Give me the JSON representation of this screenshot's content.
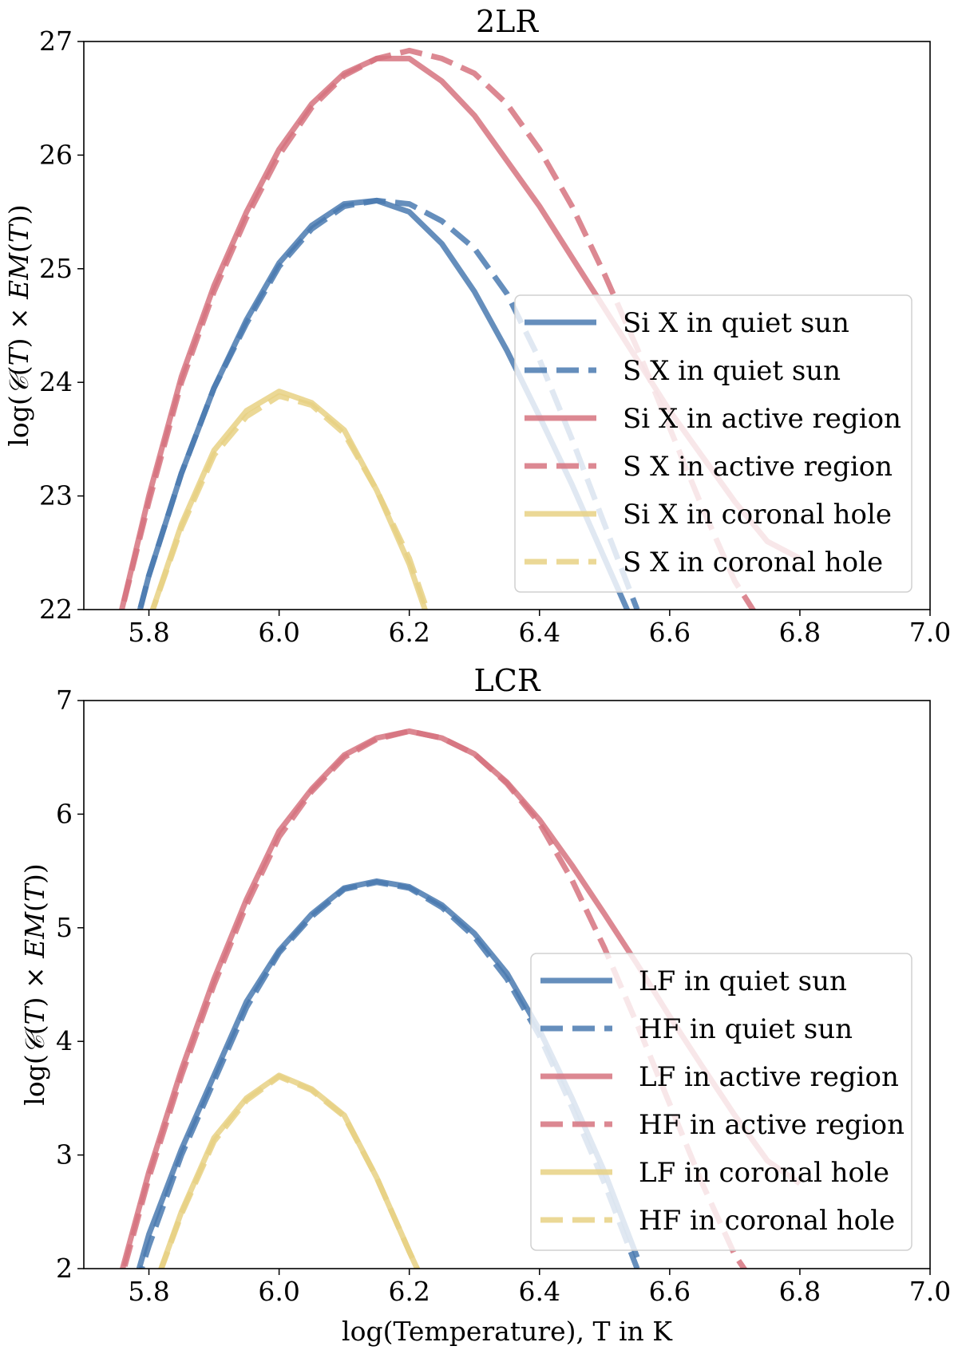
{
  "chart_data": [
    {
      "type": "line",
      "title": "2LR",
      "xlabel": "",
      "ylabel": "log(𝒞(T) × EM(T))",
      "xlim": [
        5.7,
        7.0
      ],
      "ylim": [
        22,
        27
      ],
      "xticks": [
        "5.8",
        "6.0",
        "6.2",
        "6.4",
        "6.6",
        "6.8",
        "7.0"
      ],
      "yticks": [
        "22",
        "23",
        "24",
        "25",
        "26",
        "27"
      ],
      "legend_position": "lower-right",
      "series": [
        {
          "name": "Si X in quiet sun",
          "style": "solid",
          "color": "#4a7ab0",
          "x": [
            5.75,
            5.8,
            5.85,
            5.9,
            5.95,
            6.0,
            6.05,
            6.1,
            6.15,
            6.2,
            6.25,
            6.3,
            6.35,
            6.4,
            6.45,
            6.5,
            6.55
          ],
          "y": [
            21.2,
            22.3,
            23.2,
            23.95,
            24.55,
            25.05,
            25.38,
            25.57,
            25.6,
            25.5,
            25.22,
            24.8,
            24.28,
            23.7,
            23.1,
            22.45,
            21.8
          ]
        },
        {
          "name": "S X in quiet sun",
          "style": "dashed",
          "color": "#4a7ab0",
          "x": [
            5.75,
            5.8,
            5.85,
            5.9,
            5.95,
            6.0,
            6.05,
            6.1,
            6.15,
            6.2,
            6.25,
            6.3,
            6.35,
            6.4,
            6.45,
            6.5,
            6.55
          ],
          "y": [
            21.2,
            22.3,
            23.2,
            23.95,
            24.52,
            25.02,
            25.35,
            25.55,
            25.6,
            25.57,
            25.42,
            25.18,
            24.78,
            24.2,
            23.5,
            22.75,
            22.0
          ]
        },
        {
          "name": "Si X in active region",
          "style": "solid",
          "color": "#d6737f",
          "x": [
            5.75,
            5.8,
            5.85,
            5.9,
            5.95,
            6.0,
            6.05,
            6.1,
            6.15,
            6.2,
            6.25,
            6.3,
            6.35,
            6.4,
            6.45,
            6.5,
            6.55,
            6.6,
            6.65,
            6.7,
            6.75,
            6.8
          ],
          "y": [
            21.8,
            23.0,
            24.05,
            24.85,
            25.5,
            26.05,
            26.45,
            26.72,
            26.85,
            26.85,
            26.65,
            26.35,
            25.95,
            25.55,
            25.1,
            24.65,
            24.2,
            23.75,
            23.35,
            22.95,
            22.6,
            22.45
          ]
        },
        {
          "name": "S X in active region",
          "style": "dashed",
          "color": "#d6737f",
          "x": [
            5.75,
            5.8,
            5.85,
            5.9,
            5.95,
            6.0,
            6.05,
            6.1,
            6.15,
            6.2,
            6.25,
            6.3,
            6.35,
            6.4,
            6.45,
            6.5,
            6.55,
            6.6,
            6.65,
            6.7,
            6.75
          ],
          "y": [
            21.8,
            22.95,
            24.0,
            24.8,
            25.45,
            26.0,
            26.42,
            26.7,
            26.85,
            26.92,
            26.85,
            26.72,
            26.45,
            26.05,
            25.55,
            24.95,
            24.3,
            23.6,
            22.9,
            22.25,
            21.8
          ]
        },
        {
          "name": "Si X in coronal hole",
          "style": "solid",
          "color": "#e8d184",
          "x": [
            5.8,
            5.85,
            5.9,
            5.95,
            6.0,
            6.05,
            6.1,
            6.15,
            6.2,
            6.23
          ],
          "y": [
            21.9,
            22.75,
            23.4,
            23.75,
            23.92,
            23.82,
            23.58,
            23.05,
            22.4,
            21.9
          ]
        },
        {
          "name": "S X in coronal hole",
          "style": "dashed",
          "color": "#e8d184",
          "x": [
            5.8,
            5.85,
            5.9,
            5.95,
            6.0,
            6.05,
            6.1,
            6.15,
            6.2,
            6.23
          ],
          "y": [
            21.9,
            22.72,
            23.36,
            23.7,
            23.88,
            23.8,
            23.55,
            23.05,
            22.45,
            21.95
          ]
        }
      ]
    },
    {
      "type": "line",
      "title": "LCR",
      "xlabel": "log(Temperature), T in K",
      "ylabel": "log(𝒞(T) × EM(T))",
      "xlim": [
        5.7,
        7.0
      ],
      "ylim": [
        2,
        7
      ],
      "xticks": [
        "5.8",
        "6.0",
        "6.2",
        "6.4",
        "6.6",
        "6.8",
        "7.0"
      ],
      "yticks": [
        "2",
        "3",
        "4",
        "5",
        "6",
        "7"
      ],
      "legend_position": "lower-right",
      "series": [
        {
          "name": "LF in quiet sun",
          "style": "solid",
          "color": "#4a7ab0",
          "x": [
            5.75,
            5.8,
            5.85,
            5.9,
            5.95,
            6.0,
            6.05,
            6.1,
            6.15,
            6.2,
            6.25,
            6.3,
            6.35,
            6.4,
            6.45,
            6.5,
            6.55
          ],
          "y": [
            1.3,
            2.3,
            3.05,
            3.7,
            4.35,
            4.8,
            5.12,
            5.35,
            5.41,
            5.36,
            5.2,
            4.95,
            4.6,
            4.1,
            3.5,
            2.85,
            2.1
          ]
        },
        {
          "name": "HF in quiet sun",
          "style": "dashed",
          "color": "#4a7ab0",
          "x": [
            5.75,
            5.8,
            5.85,
            5.9,
            5.95,
            6.0,
            6.05,
            6.1,
            6.15,
            6.2,
            6.25,
            6.3,
            6.35,
            6.4,
            6.45,
            6.5,
            6.55
          ],
          "y": [
            1.3,
            2.2,
            3.0,
            3.65,
            4.3,
            4.78,
            5.1,
            5.34,
            5.4,
            5.35,
            5.18,
            4.92,
            4.55,
            4.05,
            3.42,
            2.75,
            2.0
          ]
        },
        {
          "name": "LF in active region",
          "style": "solid",
          "color": "#d6737f",
          "x": [
            5.75,
            5.8,
            5.85,
            5.9,
            5.95,
            6.0,
            6.05,
            6.1,
            6.15,
            6.2,
            6.25,
            6.3,
            6.35,
            6.4,
            6.45,
            6.5,
            6.55,
            6.6,
            6.65,
            6.7,
            6.75,
            6.8
          ],
          "y": [
            1.8,
            2.85,
            3.75,
            4.55,
            5.25,
            5.85,
            6.22,
            6.52,
            6.67,
            6.73,
            6.67,
            6.53,
            6.28,
            5.95,
            5.55,
            5.12,
            4.68,
            4.22,
            3.78,
            3.35,
            2.95,
            2.75
          ]
        },
        {
          "name": "HF in active region",
          "style": "dashed",
          "color": "#d6737f",
          "x": [
            5.75,
            5.8,
            5.85,
            5.9,
            5.95,
            6.0,
            6.05,
            6.1,
            6.15,
            6.2,
            6.25,
            6.3,
            6.35,
            6.4,
            6.45,
            6.5,
            6.55,
            6.6,
            6.65,
            6.7,
            6.75
          ],
          "y": [
            1.75,
            2.8,
            3.7,
            4.5,
            5.2,
            5.8,
            6.2,
            6.5,
            6.66,
            6.73,
            6.67,
            6.53,
            6.27,
            5.92,
            5.42,
            4.82,
            4.15,
            3.45,
            2.75,
            2.12,
            1.7
          ]
        },
        {
          "name": "LF in coronal hole",
          "style": "solid",
          "color": "#e8d184",
          "x": [
            5.8,
            5.85,
            5.9,
            5.95,
            6.0,
            6.05,
            6.1,
            6.15,
            6.2,
            6.22
          ],
          "y": [
            1.7,
            2.5,
            3.15,
            3.5,
            3.7,
            3.58,
            3.35,
            2.8,
            2.15,
            1.9
          ]
        },
        {
          "name": "HF in coronal hole",
          "style": "dashed",
          "color": "#e8d184",
          "x": [
            5.8,
            5.85,
            5.9,
            5.95,
            6.0,
            6.05,
            6.1,
            6.15,
            6.2,
            6.22
          ],
          "y": [
            1.7,
            2.48,
            3.12,
            3.48,
            3.69,
            3.57,
            3.34,
            2.8,
            2.15,
            1.9
          ]
        }
      ]
    }
  ]
}
